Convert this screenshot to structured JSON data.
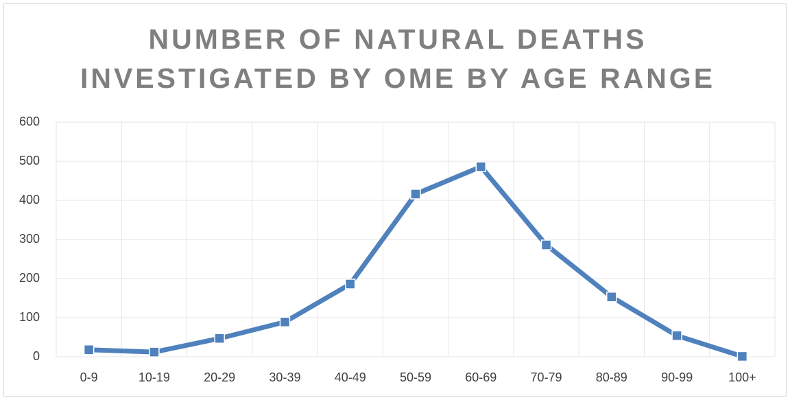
{
  "chart_data": {
    "type": "line",
    "title": [
      "NUMBER OF NATURAL DEATHS",
      "INVESTIGATED BY OME BY AGE RANGE"
    ],
    "categories": [
      "0-9",
      "10-19",
      "20-29",
      "30-39",
      "40-49",
      "50-59",
      "60-69",
      "70-79",
      "80-89",
      "90-99",
      "100+"
    ],
    "series": [
      {
        "color": "#4f81bd",
        "values": [
          18,
          12,
          47,
          89,
          186,
          416,
          486,
          286,
          153,
          54,
          1
        ]
      }
    ],
    "ylim": [
      0,
      600
    ],
    "yticks": [
      0,
      100,
      200,
      300,
      400,
      500,
      600
    ],
    "grid": true
  }
}
